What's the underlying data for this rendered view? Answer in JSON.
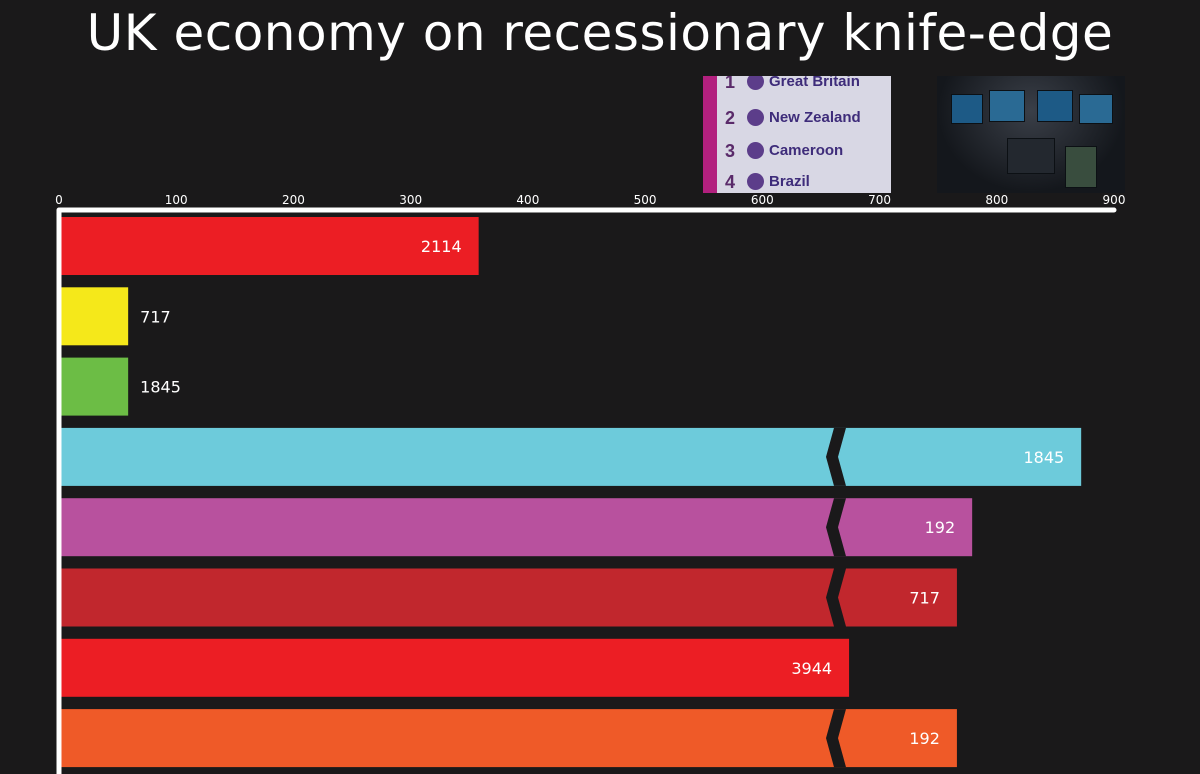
{
  "title": "UK economy on recessionary knife-edge",
  "medal_table": {
    "rows": [
      {
        "rank": "1",
        "country": "Great Britain"
      },
      {
        "rank": "2",
        "country": "New Zealand"
      },
      {
        "rank": "3",
        "country": "Cameroon"
      },
      {
        "rank": "4",
        "country": "Brazil"
      }
    ]
  },
  "chart_data": {
    "type": "bar",
    "orientation": "horizontal",
    "title": "UK economy on recessionary knife-edge",
    "xlim": [
      0,
      900
    ],
    "xticks": [
      0,
      100,
      200,
      300,
      400,
      500,
      600,
      700,
      800,
      900
    ],
    "axis_position": "top",
    "bars": [
      {
        "label": "2114",
        "scale_value": 358,
        "color": "#ec1e24",
        "broken": false
      },
      {
        "label": "717",
        "scale_value": 59,
        "color": "#f5e81a",
        "broken": false
      },
      {
        "label": "1845",
        "scale_value": 59,
        "color": "#6cbd45",
        "broken": false
      },
      {
        "label": "1845",
        "scale_value": 872,
        "color": "#6dcbdb",
        "broken": true
      },
      {
        "label": "192",
        "scale_value": 779,
        "color": "#b8519e",
        "broken": true
      },
      {
        "label": "717",
        "scale_value": 766,
        "color": "#c1272d",
        "broken": true
      },
      {
        "label": "3944",
        "scale_value": 674,
        "color": "#ec1e24",
        "broken": false
      },
      {
        "label": "192",
        "scale_value": 766,
        "color": "#ef5a28",
        "broken": true
      }
    ]
  }
}
